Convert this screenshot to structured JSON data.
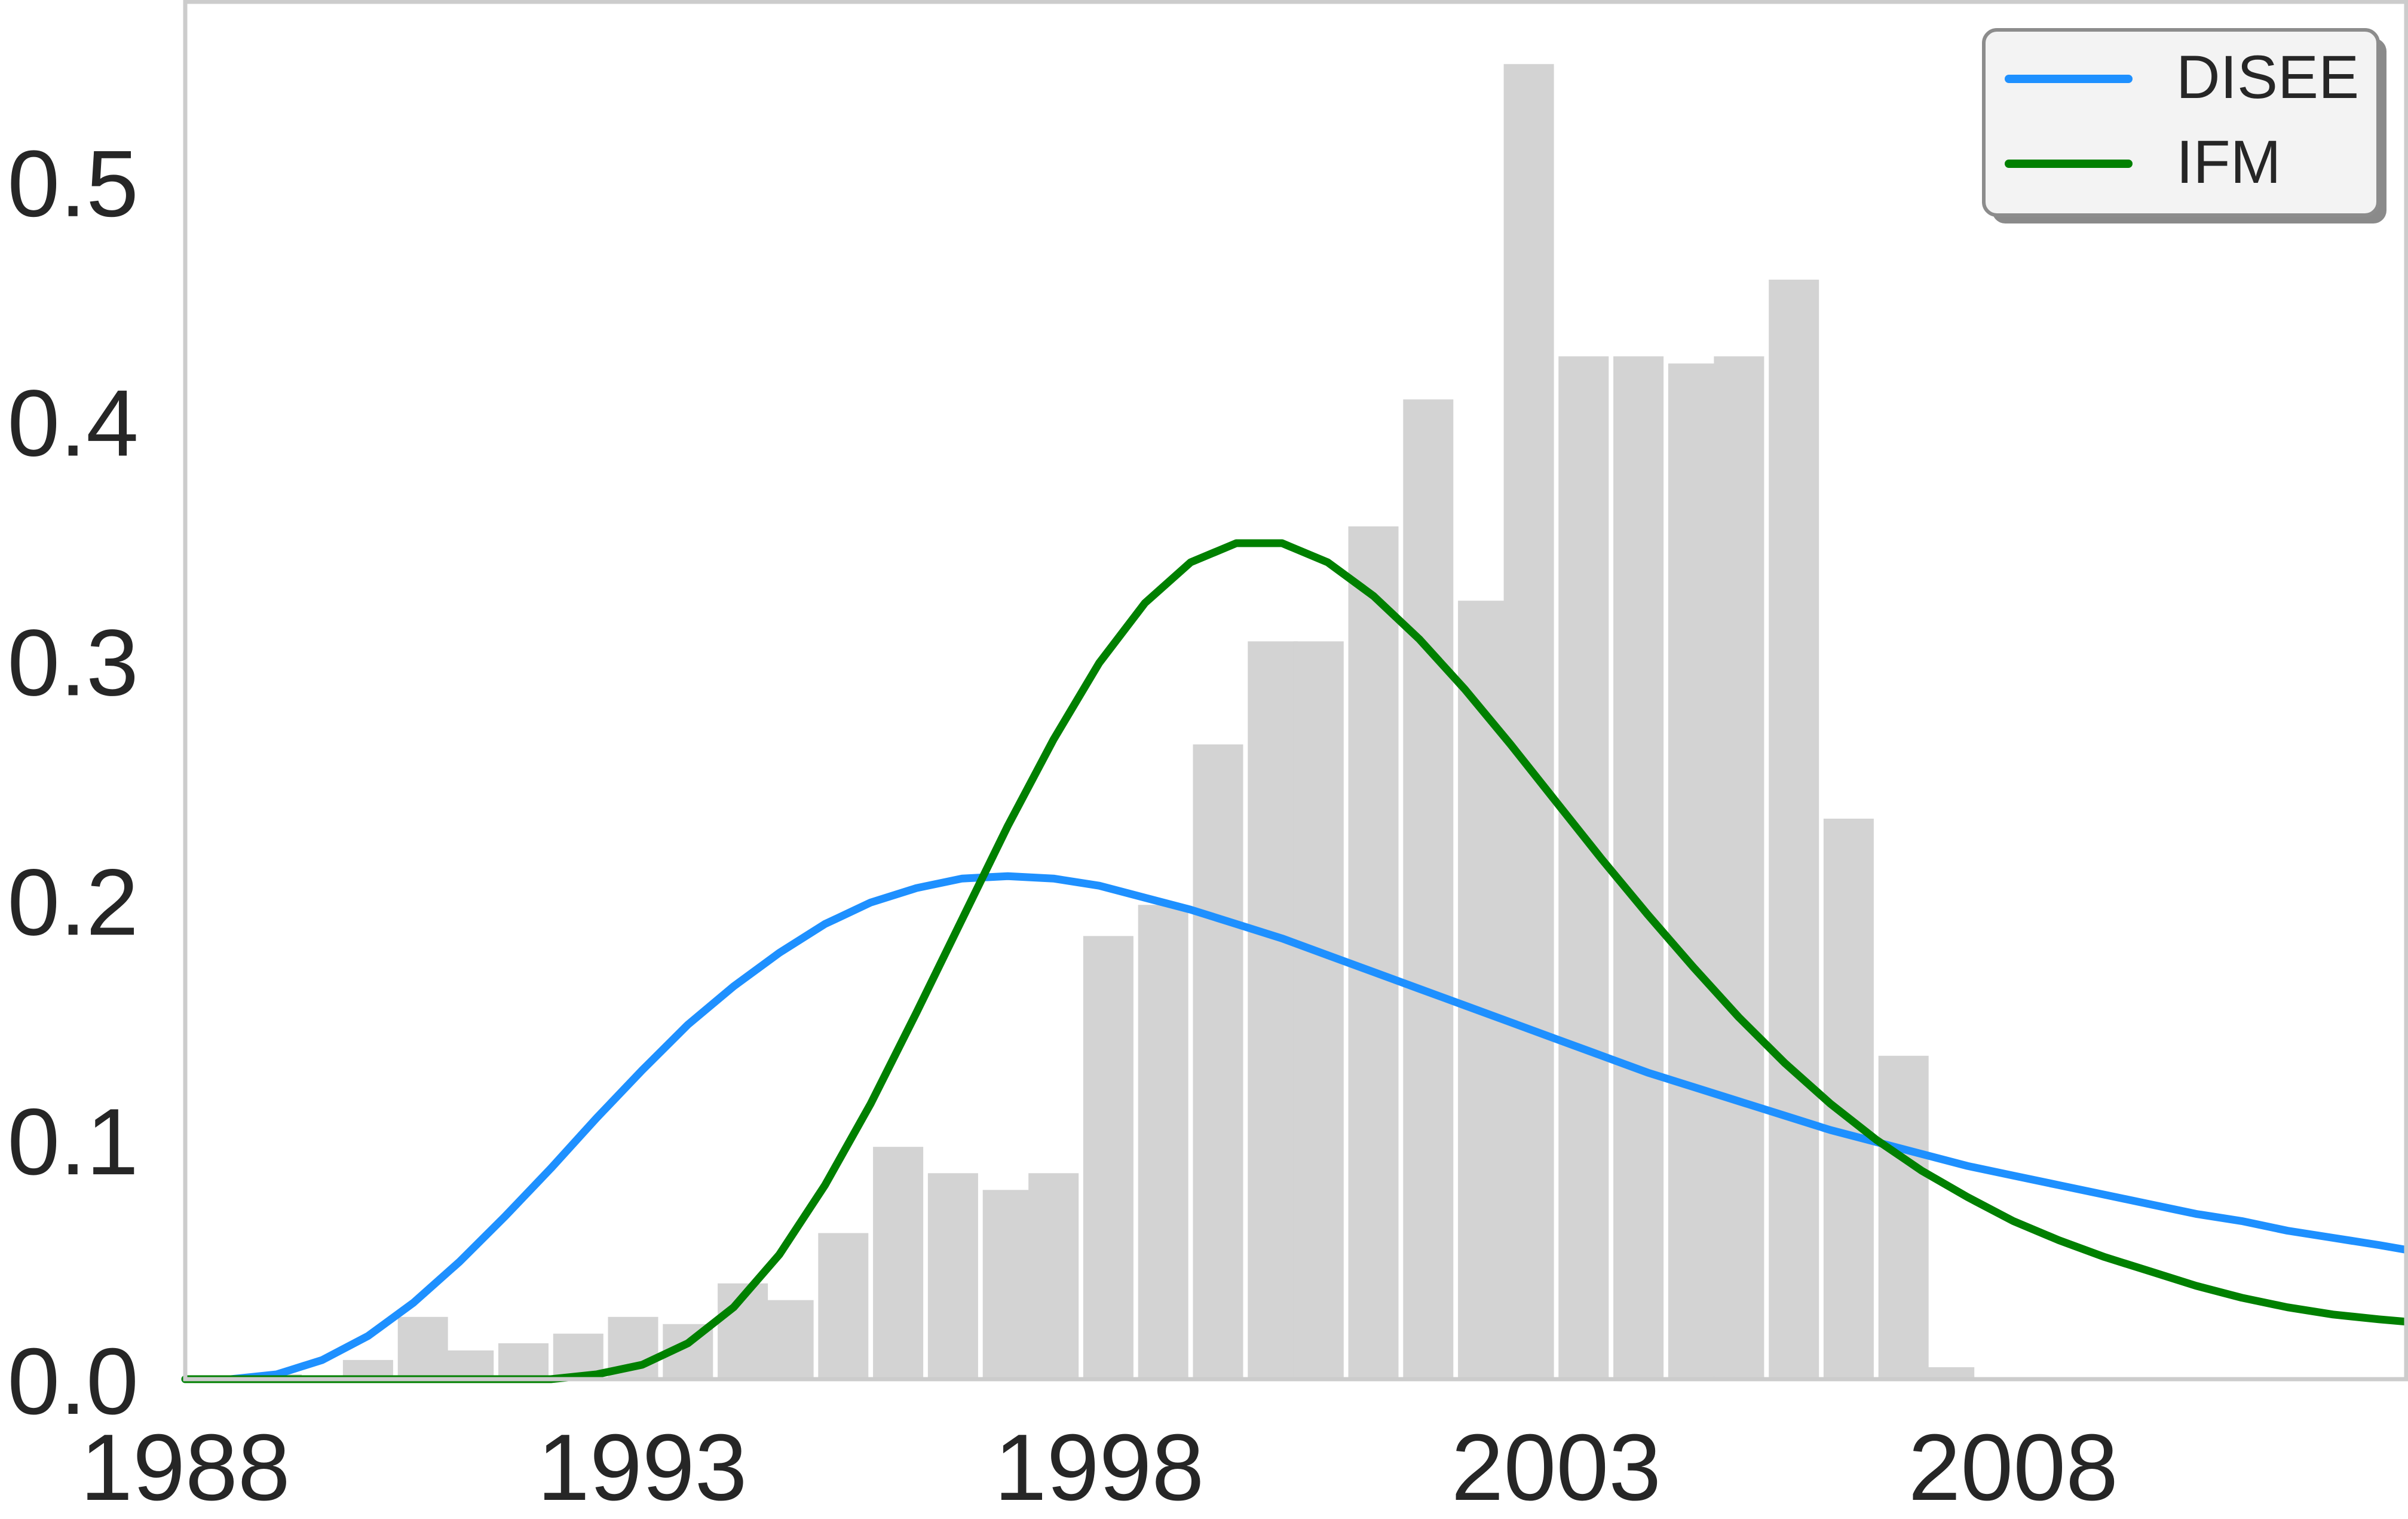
{
  "chart_data": {
    "type": "bar",
    "title": "",
    "xlabel": "",
    "ylabel": "",
    "xlim": [
      1988,
      2012.3
    ],
    "ylim": [
      0,
      0.575
    ],
    "grid": false,
    "legend_position": "top-right",
    "x_ticks": [
      {
        "value": 1988,
        "label": "1988"
      },
      {
        "value": 1993,
        "label": "1993"
      },
      {
        "value": 1998,
        "label": "1998"
      },
      {
        "value": 2003,
        "label": "2003"
      },
      {
        "value": 2008,
        "label": "2008"
      }
    ],
    "y_ticks": [
      {
        "value": 0.0,
        "label": "0.0"
      },
      {
        "value": 0.1,
        "label": "0.1"
      },
      {
        "value": 0.2,
        "label": "0.2"
      },
      {
        "value": 0.3,
        "label": "0.3"
      },
      {
        "value": 0.4,
        "label": "0.4"
      },
      {
        "value": 0.5,
        "label": "0.5"
      }
    ],
    "histogram": {
      "color": "#d3d3d3",
      "bins": [
        {
          "x": 1989,
          "value": 0.002
        },
        {
          "x": 1990,
          "value": 0.008
        },
        {
          "x": 1990.6,
          "value": 0.026
        },
        {
          "x": 1991.1,
          "value": 0.012
        },
        {
          "x": 1991.7,
          "value": 0.015
        },
        {
          "x": 1992.3,
          "value": 0.019
        },
        {
          "x": 1992.9,
          "value": 0.026
        },
        {
          "x": 1993.5,
          "value": 0.023
        },
        {
          "x": 1994.1,
          "value": 0.04
        },
        {
          "x": 1994.6,
          "value": 0.033
        },
        {
          "x": 1995.2,
          "value": 0.061
        },
        {
          "x": 1995.8,
          "value": 0.097
        },
        {
          "x": 1996.4,
          "value": 0.086
        },
        {
          "x": 1997.0,
          "value": 0.079
        },
        {
          "x": 1997.5,
          "value": 0.086
        },
        {
          "x": 1998.1,
          "value": 0.185
        },
        {
          "x": 1998.7,
          "value": 0.198
        },
        {
          "x": 1999.3,
          "value": 0.265
        },
        {
          "x": 1999.9,
          "value": 0.308
        },
        {
          "x": 2000.4,
          "value": 0.308
        },
        {
          "x": 2001.0,
          "value": 0.356
        },
        {
          "x": 2001.6,
          "value": 0.409
        },
        {
          "x": 2002.2,
          "value": 0.325
        },
        {
          "x": 2002.7,
          "value": 0.549
        },
        {
          "x": 2003.3,
          "value": 0.427
        },
        {
          "x": 2003.9,
          "value": 0.427
        },
        {
          "x": 2004.5,
          "value": 0.424
        },
        {
          "x": 2005.0,
          "value": 0.427
        },
        {
          "x": 2005.6,
          "value": 0.459
        },
        {
          "x": 2006.2,
          "value": 0.234
        },
        {
          "x": 2006.8,
          "value": 0.135
        },
        {
          "x": 2007.3,
          "value": 0.005
        }
      ]
    },
    "series": [
      {
        "name": "DISEE",
        "color": "#1e90ff",
        "points": [
          [
            1988,
            0.0
          ],
          [
            1988.5,
            0.0
          ],
          [
            1989,
            0.002
          ],
          [
            1989.5,
            0.008
          ],
          [
            1990,
            0.018
          ],
          [
            1990.5,
            0.032
          ],
          [
            1991,
            0.049
          ],
          [
            1991.5,
            0.068
          ],
          [
            1992,
            0.088
          ],
          [
            1992.5,
            0.109
          ],
          [
            1993,
            0.129
          ],
          [
            1993.5,
            0.148
          ],
          [
            1994,
            0.164
          ],
          [
            1994.5,
            0.178
          ],
          [
            1995,
            0.19
          ],
          [
            1995.5,
            0.199
          ],
          [
            1996,
            0.205
          ],
          [
            1996.5,
            0.209
          ],
          [
            1997,
            0.21
          ],
          [
            1997.5,
            0.209
          ],
          [
            1998,
            0.206
          ],
          [
            1998.5,
            0.201
          ],
          [
            1999,
            0.196
          ],
          [
            1999.5,
            0.19
          ],
          [
            2000,
            0.184
          ],
          [
            2000.5,
            0.177
          ],
          [
            2001,
            0.17
          ],
          [
            2001.5,
            0.163
          ],
          [
            2002,
            0.156
          ],
          [
            2002.5,
            0.149
          ],
          [
            2003,
            0.142
          ],
          [
            2003.5,
            0.135
          ],
          [
            2004,
            0.128
          ],
          [
            2004.5,
            0.122
          ],
          [
            2005,
            0.116
          ],
          [
            2005.5,
            0.11
          ],
          [
            2006,
            0.104
          ],
          [
            2006.5,
            0.099
          ],
          [
            2007,
            0.094
          ],
          [
            2007.5,
            0.089
          ],
          [
            2008,
            0.085
          ],
          [
            2008.5,
            0.081
          ],
          [
            2009,
            0.077
          ],
          [
            2009.5,
            0.073
          ],
          [
            2010,
            0.069
          ],
          [
            2010.5,
            0.066
          ],
          [
            2011,
            0.062
          ],
          [
            2011.5,
            0.059
          ],
          [
            2012,
            0.056
          ],
          [
            2012.3,
            0.054
          ]
        ]
      },
      {
        "name": "IFM",
        "color": "#008000",
        "points": [
          [
            1988,
            0.0
          ],
          [
            1992,
            0.0
          ],
          [
            1992.5,
            0.002
          ],
          [
            1993,
            0.006
          ],
          [
            1993.5,
            0.015
          ],
          [
            1994,
            0.03
          ],
          [
            1994.5,
            0.052
          ],
          [
            1995,
            0.081
          ],
          [
            1995.5,
            0.115
          ],
          [
            1996,
            0.153
          ],
          [
            1996.5,
            0.192
          ],
          [
            1997,
            0.231
          ],
          [
            1997.5,
            0.267
          ],
          [
            1998,
            0.299
          ],
          [
            1998.5,
            0.324
          ],
          [
            1999,
            0.341
          ],
          [
            1999.5,
            0.349
          ],
          [
            2000,
            0.349
          ],
          [
            2000.5,
            0.341
          ],
          [
            2001,
            0.327
          ],
          [
            2001.5,
            0.309
          ],
          [
            2002,
            0.288
          ],
          [
            2002.5,
            0.265
          ],
          [
            2003,
            0.241
          ],
          [
            2003.5,
            0.217
          ],
          [
            2004,
            0.194
          ],
          [
            2004.5,
            0.172
          ],
          [
            2005,
            0.151
          ],
          [
            2005.5,
            0.132
          ],
          [
            2006,
            0.115
          ],
          [
            2006.5,
            0.1
          ],
          [
            2007,
            0.087
          ],
          [
            2007.5,
            0.076
          ],
          [
            2008,
            0.066
          ],
          [
            2008.5,
            0.058
          ],
          [
            2009,
            0.051
          ],
          [
            2009.5,
            0.045
          ],
          [
            2010,
            0.039
          ],
          [
            2010.5,
            0.034
          ],
          [
            2011,
            0.03
          ],
          [
            2011.5,
            0.027
          ],
          [
            2012,
            0.025
          ],
          [
            2012.3,
            0.024
          ]
        ]
      }
    ]
  }
}
